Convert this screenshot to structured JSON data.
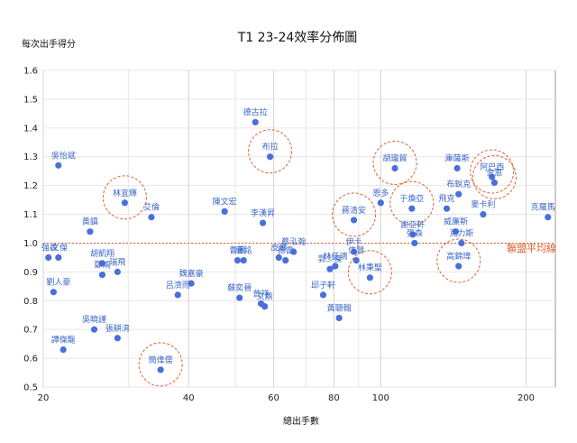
{
  "chart_data": {
    "type": "scatter",
    "title": "T1 23-24效率分佈圖",
    "xlabel": "總出手數",
    "ylabel": "每次出手得分",
    "x_scale": "log",
    "xlim": [
      20,
      230
    ],
    "ylim": [
      0.5,
      1.6
    ],
    "x_ticks": [
      20,
      40,
      60,
      80,
      100,
      200
    ],
    "y_ticks": [
      0.5,
      0.6,
      0.7,
      0.8,
      0.9,
      1.0,
      1.1,
      1.2,
      1.3,
      1.4,
      1.5,
      1.6
    ],
    "grid": true,
    "reference_line": {
      "label": "聯盟平均線",
      "y": 1.0
    },
    "point_color": "#4a6fdc",
    "highlight_color": "#e06030",
    "points": [
      {
        "name": "吳怡斌",
        "x": 21.5,
        "y": 1.27
      },
      {
        "name": "強森",
        "x": 20.5,
        "y": 0.95
      },
      {
        "name": "文傑",
        "x": 21.5,
        "y": 0.95
      },
      {
        "name": "劉人豪",
        "x": 21.0,
        "y": 0.83
      },
      {
        "name": "譚傑龍",
        "x": 22.0,
        "y": 0.63
      },
      {
        "name": "黃鎮",
        "x": 25.0,
        "y": 1.04
      },
      {
        "name": "林宜輝",
        "x": 29.5,
        "y": 1.14,
        "highlight": true
      },
      {
        "name": "胡凱翔",
        "x": 26.5,
        "y": 0.93
      },
      {
        "name": "鄭鴻",
        "x": 26.5,
        "y": 0.89
      },
      {
        "name": "瑞飛",
        "x": 28.5,
        "y": 0.9
      },
      {
        "name": "吳曉謹",
        "x": 25.5,
        "y": 0.7
      },
      {
        "name": "張耕淯",
        "x": 28.5,
        "y": 0.67
      },
      {
        "name": "艾倫",
        "x": 33.5,
        "y": 1.09
      },
      {
        "name": "簡偉儒",
        "x": 35.0,
        "y": 0.56,
        "highlight": true
      },
      {
        "name": "呂濟而",
        "x": 38.0,
        "y": 0.82
      },
      {
        "name": "魏嘉豪",
        "x": 40.5,
        "y": 0.86
      },
      {
        "name": "陳文宏",
        "x": 47.5,
        "y": 1.11
      },
      {
        "name": "曹薰",
        "x": 50.5,
        "y": 0.94
      },
      {
        "name": "襄銘",
        "x": 52.0,
        "y": 0.94
      },
      {
        "name": "蘇奕晉",
        "x": 51.0,
        "y": 0.81
      },
      {
        "name": "德古拉",
        "x": 55.0,
        "y": 1.42
      },
      {
        "name": "布拉",
        "x": 59.0,
        "y": 1.3,
        "highlight": true
      },
      {
        "name": "李漢昇",
        "x": 57.0,
        "y": 1.07
      },
      {
        "name": "曾祥",
        "x": 56.5,
        "y": 0.79
      },
      {
        "name": "文鼎",
        "x": 57.5,
        "y": 0.78
      },
      {
        "name": "皮爾",
        "x": 61.5,
        "y": 0.95
      },
      {
        "name": "德雷",
        "x": 63.5,
        "y": 0.94
      },
      {
        "name": "蔡泓瀚",
        "x": 66.0,
        "y": 0.97
      },
      {
        "name": "郭少傑",
        "x": 78.5,
        "y": 0.91
      },
      {
        "name": "林任鴻",
        "x": 80.5,
        "y": 0.92
      },
      {
        "name": "邱子軒",
        "x": 76.0,
        "y": 0.82
      },
      {
        "name": "黃聰翰",
        "x": 82.0,
        "y": 0.74
      },
      {
        "name": "蔣清安",
        "x": 88.0,
        "y": 1.08,
        "highlight": true
      },
      {
        "name": "伊卡",
        "x": 88.0,
        "y": 0.97
      },
      {
        "name": "信賢",
        "x": 89.0,
        "y": 0.94
      },
      {
        "name": "林秉聖",
        "x": 95.0,
        "y": 0.88,
        "highlight": true
      },
      {
        "name": "恩多",
        "x": 100.0,
        "y": 1.14
      },
      {
        "name": "胡瓏貿",
        "x": 107.0,
        "y": 1.26,
        "highlight": true
      },
      {
        "name": "于煥亞",
        "x": 116.0,
        "y": 1.12,
        "highlight": true
      },
      {
        "name": "謝亞軒",
        "x": 116.5,
        "y": 1.03
      },
      {
        "name": "張森",
        "x": 117.5,
        "y": 1.0
      },
      {
        "name": "庫薩斯",
        "x": 144.0,
        "y": 1.26
      },
      {
        "name": "布銳克",
        "x": 145.0,
        "y": 1.17
      },
      {
        "name": "飛克",
        "x": 137.0,
        "y": 1.12
      },
      {
        "name": "威廉斯",
        "x": 143.0,
        "y": 1.04
      },
      {
        "name": "克力斯",
        "x": 147.0,
        "y": 1.0
      },
      {
        "name": "高錦瑋",
        "x": 145.0,
        "y": 0.92,
        "highlight": true
      },
      {
        "name": "阿巴西",
        "x": 170.0,
        "y": 1.23,
        "highlight": true
      },
      {
        "name": "金恩",
        "x": 172.0,
        "y": 1.21,
        "highlight": true
      },
      {
        "name": "麥卡利",
        "x": 163.0,
        "y": 1.1
      },
      {
        "name": "克羅馬",
        "x": 222.0,
        "y": 1.09
      }
    ]
  }
}
